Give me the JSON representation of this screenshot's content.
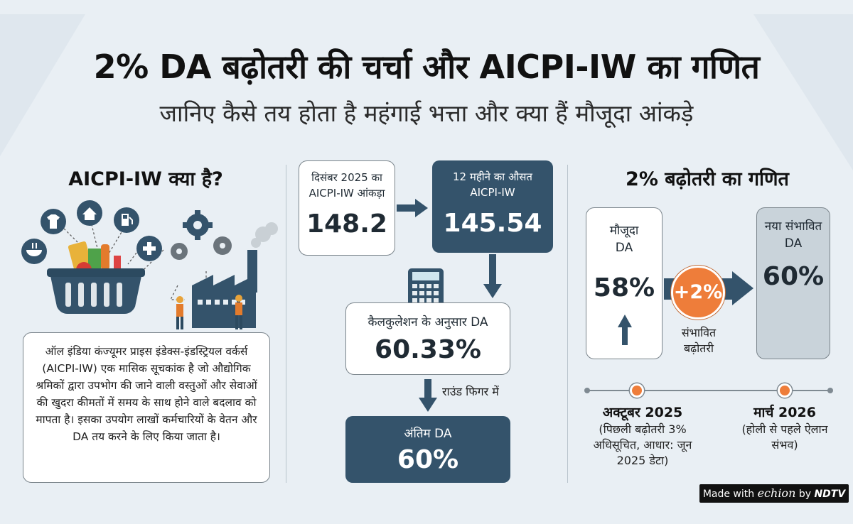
{
  "header": {
    "title": "2% DA बढ़ोतरी की चर्चा और AICPI-IW का गणित",
    "subtitle": "जानिए कैसे तय होता है महंगाई भत्ता और क्या हैं मौजूदा आंकड़े"
  },
  "left": {
    "heading": "AICPI-IW क्या है?",
    "description": "ऑल इंडिया कंज्यूमर प्राइस इंडेक्स-इंडस्ट्रियल वर्कर्स (AICPI-IW) एक मासिक सूचकांक है जो औद्योगिक श्रमिकों द्वारा उपभोग की जाने वाली वस्तुओं और सेवाओं की खुदरा कीमतों में समय के साथ होने वाले बदलाव को मापता है। इसका उपयोग लाखों कर्मचारियों के वेतन और DA तय करने के लिए किया जाता है।",
    "icons": [
      "shirt-icon",
      "home-icon",
      "fuel-icon",
      "bowl-icon",
      "medical-plus-icon",
      "gear-icon",
      "basket-icon",
      "factory-icon",
      "worker-icon"
    ]
  },
  "middle": {
    "dec_label": "दिसंबर 2025 का AICPI-IW आंकड़ा",
    "dec_value": "148.2",
    "avg_label": "12 महीने का औसत AICPI-IW",
    "avg_value": "145.54",
    "calc_label": "कैलकुलेशन के अनुसार DA",
    "calc_value": "60.33%",
    "round_label": "राउंड फिगर में",
    "final_label": "अंतिम DA",
    "final_value": "60%"
  },
  "right": {
    "heading": "2% बढ़ोतरी का गणित",
    "current_label": "मौजूदा DA",
    "current_value": "58%",
    "increase_value": "+2%",
    "increase_label": "संभावित बढ़ोतरी",
    "new_label": "नया संभावित DA",
    "new_value": "60%",
    "timeline": [
      {
        "title": "अक्टूबर 2025",
        "note": "(पिछली बढ़ोतरी 3% अधिसूचित, आधार: जून 2025 डेटा)"
      },
      {
        "title": "मार्च 2026",
        "note": "(होली से पहले ऐलान संभव)"
      }
    ]
  },
  "footer": {
    "made_with": "Made with",
    "brand": "echion",
    "by": "by",
    "outlet": "NDTV"
  },
  "colors": {
    "navy": "#34536b",
    "orange": "#ee7d3a",
    "grey_box": "#c9d3da"
  }
}
